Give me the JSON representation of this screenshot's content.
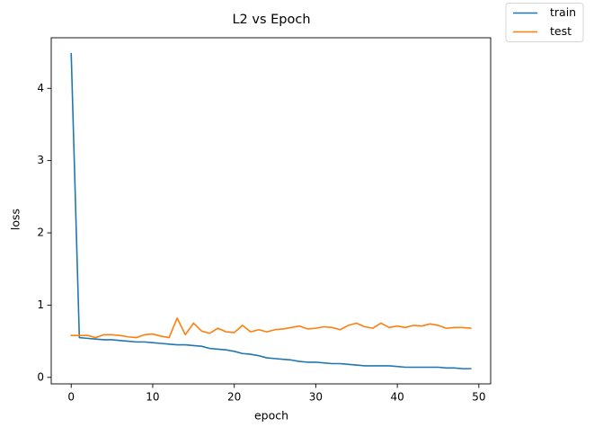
{
  "chart_data": {
    "type": "line",
    "title": "L2 vs Epoch",
    "xlabel": "epoch",
    "ylabel": "loss",
    "xlim": [
      -2.45,
      51.45
    ],
    "ylim": [
      -0.09,
      4.7
    ],
    "xticks": [
      0,
      10,
      20,
      30,
      40,
      50
    ],
    "yticks": [
      0,
      1,
      2,
      3,
      4
    ],
    "grid": false,
    "legend_position": "outside-top-right",
    "x": [
      0,
      1,
      2,
      3,
      4,
      5,
      6,
      7,
      8,
      9,
      10,
      11,
      12,
      13,
      14,
      15,
      16,
      17,
      18,
      19,
      20,
      21,
      22,
      23,
      24,
      25,
      26,
      27,
      28,
      29,
      30,
      31,
      32,
      33,
      34,
      35,
      36,
      37,
      38,
      39,
      40,
      41,
      42,
      43,
      44,
      45,
      46,
      47,
      48,
      49
    ],
    "series": [
      {
        "name": "train",
        "color": "#1f77b4",
        "values": [
          4.48,
          0.55,
          0.54,
          0.53,
          0.52,
          0.52,
          0.51,
          0.5,
          0.49,
          0.49,
          0.48,
          0.47,
          0.46,
          0.45,
          0.45,
          0.44,
          0.43,
          0.4,
          0.39,
          0.38,
          0.36,
          0.33,
          0.32,
          0.3,
          0.27,
          0.26,
          0.25,
          0.24,
          0.22,
          0.21,
          0.21,
          0.2,
          0.19,
          0.19,
          0.18,
          0.17,
          0.16,
          0.16,
          0.16,
          0.16,
          0.15,
          0.14,
          0.14,
          0.14,
          0.14,
          0.14,
          0.13,
          0.13,
          0.12,
          0.12
        ]
      },
      {
        "name": "test",
        "color": "#ff7f0e",
        "values": [
          0.58,
          0.58,
          0.58,
          0.55,
          0.59,
          0.59,
          0.58,
          0.56,
          0.55,
          0.59,
          0.6,
          0.57,
          0.55,
          0.82,
          0.59,
          0.75,
          0.64,
          0.61,
          0.68,
          0.63,
          0.62,
          0.72,
          0.63,
          0.66,
          0.63,
          0.66,
          0.67,
          0.69,
          0.71,
          0.67,
          0.68,
          0.7,
          0.69,
          0.66,
          0.72,
          0.75,
          0.7,
          0.68,
          0.75,
          0.69,
          0.71,
          0.69,
          0.72,
          0.71,
          0.74,
          0.72,
          0.68,
          0.69,
          0.69,
          0.68
        ]
      }
    ]
  }
}
